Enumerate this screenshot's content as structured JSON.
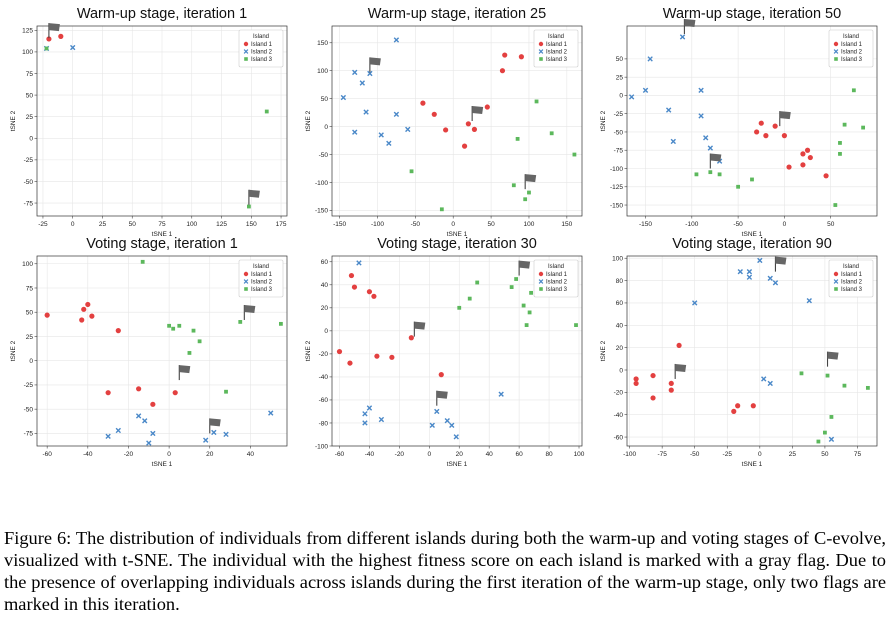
{
  "colors": {
    "island1": "#e34040",
    "island2": "#4a88c8",
    "island3": "#5cb85c",
    "flag": "#666666"
  },
  "caption": "Figure 6: The distribution of individuals from different islands during both the warm-up and voting stages of C-evolve, visualized with t-SNE. The individual with the highest fitness score on each island is marked with a gray flag. Due to the presence of overlapping individuals across islands during the first iteration of the warm-up stage, only two flags are marked in this iteration.",
  "chart_data": [
    {
      "type": "scatter",
      "title": "Warm-up stage, iteration 1",
      "xlabel": "tSNE 1",
      "ylabel": "tSNE 2",
      "xlim": [
        -30,
        180
      ],
      "ylim": [
        -90,
        130
      ],
      "xticks": [
        -25,
        0,
        25,
        50,
        75,
        100,
        125,
        150,
        175
      ],
      "yticks": [
        -75,
        -50,
        -25,
        0,
        25,
        50,
        75,
        100,
        125
      ],
      "legend": {
        "title": "Island",
        "position": "top-right",
        "entries": [
          "Island 1",
          "Island 2",
          "Island 3"
        ]
      },
      "series": [
        {
          "name": "Island 1",
          "points": [
            [
              -20,
              115
            ],
            [
              -10,
              118
            ]
          ]
        },
        {
          "name": "Island 2",
          "points": [
            [
              -22,
              104
            ],
            [
              0,
              105
            ]
          ]
        },
        {
          "name": "Island 3",
          "points": [
            [
              -22,
              104
            ],
            [
              163,
              31
            ],
            [
              148,
              -79
            ]
          ]
        }
      ],
      "flags": [
        [
          -20,
          116
        ],
        [
          148,
          -77
        ]
      ]
    },
    {
      "type": "scatter",
      "title": "Warm-up stage, iteration 25",
      "xlabel": "tSNE 1",
      "ylabel": "tSNE 2",
      "xlim": [
        -160,
        170
      ],
      "ylim": [
        -160,
        180
      ],
      "xticks": [
        -150,
        -100,
        -50,
        0,
        50,
        100,
        150
      ],
      "yticks": [
        -150,
        -100,
        -50,
        0,
        50,
        100,
        150
      ],
      "legend": {
        "title": "Island",
        "position": "top-right",
        "entries": [
          "Island 1",
          "Island 2",
          "Island 3"
        ]
      },
      "series": [
        {
          "name": "Island 1",
          "points": [
            [
              -40,
              42
            ],
            [
              -25,
              22
            ],
            [
              -10,
              -6
            ],
            [
              15,
              -35
            ],
            [
              20,
              5
            ],
            [
              28,
              -5
            ],
            [
              45,
              35
            ],
            [
              65,
              100
            ],
            [
              68,
              128
            ],
            [
              90,
              125
            ]
          ]
        },
        {
          "name": "Island 2",
          "points": [
            [
              -145,
              52
            ],
            [
              -130,
              97
            ],
            [
              -120,
              78
            ],
            [
              -115,
              26
            ],
            [
              -130,
              -10
            ],
            [
              -95,
              -15
            ],
            [
              -85,
              -30
            ],
            [
              -75,
              22
            ],
            [
              -60,
              -5
            ],
            [
              -75,
              155
            ],
            [
              -110,
              95
            ]
          ]
        },
        {
          "name": "Island 3",
          "points": [
            [
              -55,
              -80
            ],
            [
              -15,
              -148
            ],
            [
              80,
              -105
            ],
            [
              85,
              -22
            ],
            [
              100,
              -118
            ],
            [
              110,
              45
            ],
            [
              130,
              -12
            ],
            [
              160,
              -50
            ],
            [
              95,
              -130
            ]
          ]
        }
      ],
      "flags": [
        [
          -110,
          97
        ],
        [
          25,
          10
        ],
        [
          95,
          -112
        ]
      ]
    },
    {
      "type": "scatter",
      "title": "Warm-up stage, iteration 50",
      "xlabel": "tSNE 1",
      "ylabel": "tSNE 2",
      "xlim": [
        -170,
        100
      ],
      "ylim": [
        -165,
        95
      ],
      "xticks": [
        -150,
        -100,
        -50,
        0,
        50
      ],
      "yticks": [
        -150,
        -125,
        -100,
        -75,
        -50,
        -25,
        0,
        25,
        50
      ],
      "legend": {
        "title": "Island",
        "position": "top-right",
        "entries": [
          "Island 1",
          "Island 2",
          "Island 3"
        ]
      },
      "series": [
        {
          "name": "Island 1",
          "points": [
            [
              -30,
              -50
            ],
            [
              -25,
              -38
            ],
            [
              -20,
              -55
            ],
            [
              -10,
              -42
            ],
            [
              0,
              -55
            ],
            [
              5,
              -98
            ],
            [
              20,
              -80
            ],
            [
              20,
              -95
            ],
            [
              25,
              -75
            ],
            [
              28,
              -85
            ],
            [
              45,
              -110
            ]
          ]
        },
        {
          "name": "Island 2",
          "points": [
            [
              -165,
              -2
            ],
            [
              -150,
              7
            ],
            [
              -145,
              50
            ],
            [
              -125,
              -20
            ],
            [
              -120,
              -63
            ],
            [
              -110,
              80
            ],
            [
              -90,
              7
            ],
            [
              -90,
              -28
            ],
            [
              -85,
              -58
            ],
            [
              -80,
              -72
            ],
            [
              -70,
              -90
            ]
          ]
        },
        {
          "name": "Island 3",
          "points": [
            [
              -95,
              -108
            ],
            [
              -80,
              -105
            ],
            [
              -70,
              -108
            ],
            [
              -50,
              -125
            ],
            [
              -35,
              -115
            ],
            [
              55,
              -150
            ],
            [
              60,
              -65
            ],
            [
              65,
              -40
            ],
            [
              75,
              7
            ],
            [
              85,
              -44
            ],
            [
              60,
              -80
            ]
          ]
        }
      ],
      "flags": [
        [
          -108,
          84
        ],
        [
          -80,
          -100
        ],
        [
          -5,
          -42
        ]
      ]
    },
    {
      "type": "scatter",
      "title": "Voting stage, iteration 1",
      "xlabel": "tSNE 1",
      "ylabel": "tSNE 2",
      "xlim": [
        -65,
        58
      ],
      "ylim": [
        -88,
        108
      ],
      "xticks": [
        -60,
        -40,
        -20,
        0,
        20,
        40
      ],
      "yticks": [
        -75,
        -50,
        -25,
        0,
        25,
        50,
        75,
        100
      ],
      "legend": {
        "title": "Island",
        "position": "top-right",
        "entries": [
          "Island 1",
          "Island 2",
          "Island 3"
        ]
      },
      "series": [
        {
          "name": "Island 1",
          "points": [
            [
              -60,
              47
            ],
            [
              -43,
              42
            ],
            [
              -42,
              53
            ],
            [
              -40,
              58
            ],
            [
              -38,
              46
            ],
            [
              -30,
              -33
            ],
            [
              -25,
              31
            ],
            [
              -15,
              -29
            ],
            [
              -8,
              -45
            ],
            [
              3,
              -33
            ]
          ]
        },
        {
          "name": "Island 2",
          "points": [
            [
              -30,
              -78
            ],
            [
              -25,
              -72
            ],
            [
              -15,
              -57
            ],
            [
              -12,
              -62
            ],
            [
              -10,
              -85
            ],
            [
              -8,
              -75
            ],
            [
              18,
              -82
            ],
            [
              22,
              -74
            ],
            [
              28,
              -76
            ],
            [
              50,
              -54
            ]
          ]
        },
        {
          "name": "Island 3",
          "points": [
            [
              -13,
              102
            ],
            [
              0,
              36
            ],
            [
              2,
              33
            ],
            [
              5,
              36
            ],
            [
              12,
              31
            ],
            [
              10,
              8
            ],
            [
              15,
              20
            ],
            [
              35,
              40
            ],
            [
              28,
              -32
            ],
            [
              55,
              38
            ]
          ]
        }
      ],
      "flags": [
        [
          5,
          -20
        ],
        [
          20,
          -75
        ],
        [
          37,
          42
        ]
      ]
    },
    {
      "type": "scatter",
      "title": "Voting stage, iteration 30",
      "xlabel": "tSNE 1",
      "ylabel": "tSNE 2",
      "xlim": [
        -65,
        102
      ],
      "ylim": [
        -100,
        65
      ],
      "xticks": [
        -60,
        -40,
        -20,
        0,
        20,
        40,
        60,
        80,
        100
      ],
      "yticks": [
        -100,
        -80,
        -60,
        -40,
        -20,
        0,
        20,
        40,
        60
      ],
      "legend": {
        "title": "Island",
        "position": "top-right",
        "entries": [
          "Island 1",
          "Island 2",
          "Island 3"
        ]
      },
      "series": [
        {
          "name": "Island 1",
          "points": [
            [
              -60,
              -18
            ],
            [
              -53,
              -28
            ],
            [
              -50,
              38
            ],
            [
              -52,
              48
            ],
            [
              -40,
              34
            ],
            [
              -37,
              30
            ],
            [
              -35,
              -22
            ],
            [
              -25,
              -23
            ],
            [
              -12,
              -6
            ],
            [
              8,
              -38
            ]
          ]
        },
        {
          "name": "Island 2",
          "points": [
            [
              -47,
              59
            ],
            [
              -43,
              -72
            ],
            [
              -40,
              -67
            ],
            [
              -43,
              -80
            ],
            [
              -32,
              -77
            ],
            [
              2,
              -82
            ],
            [
              5,
              -70
            ],
            [
              12,
              -78
            ],
            [
              15,
              -82
            ],
            [
              18,
              -92
            ],
            [
              48,
              -55
            ]
          ]
        },
        {
          "name": "Island 3",
          "points": [
            [
              20,
              20
            ],
            [
              27,
              28
            ],
            [
              32,
              42
            ],
            [
              55,
              38
            ],
            [
              58,
              45
            ],
            [
              63,
              22
            ],
            [
              65,
              5
            ],
            [
              67,
              16
            ],
            [
              68,
              33
            ],
            [
              98,
              5
            ]
          ]
        }
      ],
      "flags": [
        [
          -10,
          -5
        ],
        [
          5,
          -65
        ],
        [
          60,
          48
        ]
      ]
    },
    {
      "type": "scatter",
      "title": "Voting stage, iteration 90",
      "xlabel": "tSNE 1",
      "ylabel": "tSNE 2",
      "xlim": [
        -102,
        90
      ],
      "ylim": [
        -68,
        102
      ],
      "xticks": [
        -100,
        -75,
        -50,
        -25,
        0,
        25,
        50,
        75
      ],
      "yticks": [
        -60,
        -40,
        -20,
        0,
        20,
        40,
        60,
        80,
        100
      ],
      "legend": {
        "title": "Island",
        "position": "top-right",
        "entries": [
          "Island 1",
          "Island 2",
          "Island 3"
        ]
      },
      "series": [
        {
          "name": "Island 1",
          "points": [
            [
              -95,
              -8
            ],
            [
              -95,
              -12
            ],
            [
              -82,
              -5
            ],
            [
              -82,
              -25
            ],
            [
              -68,
              -12
            ],
            [
              -68,
              -18
            ],
            [
              -62,
              22
            ],
            [
              -20,
              -37
            ],
            [
              -17,
              -32
            ],
            [
              -5,
              -32
            ]
          ]
        },
        {
          "name": "Island 2",
          "points": [
            [
              -50,
              60
            ],
            [
              -15,
              88
            ],
            [
              -8,
              88
            ],
            [
              -8,
              83
            ],
            [
              0,
              98
            ],
            [
              3,
              -8
            ],
            [
              8,
              -12
            ],
            [
              8,
              82
            ],
            [
              12,
              78
            ],
            [
              38,
              62
            ],
            [
              55,
              -62
            ]
          ]
        },
        {
          "name": "Island 3",
          "points": [
            [
              32,
              -3
            ],
            [
              45,
              -64
            ],
            [
              50,
              -56
            ],
            [
              52,
              -5
            ],
            [
              55,
              -42
            ],
            [
              65,
              -14
            ],
            [
              83,
              -16
            ]
          ]
        }
      ],
      "flags": [
        [
          -65,
          -8
        ],
        [
          12,
          88
        ],
        [
          52,
          3
        ]
      ]
    }
  ]
}
